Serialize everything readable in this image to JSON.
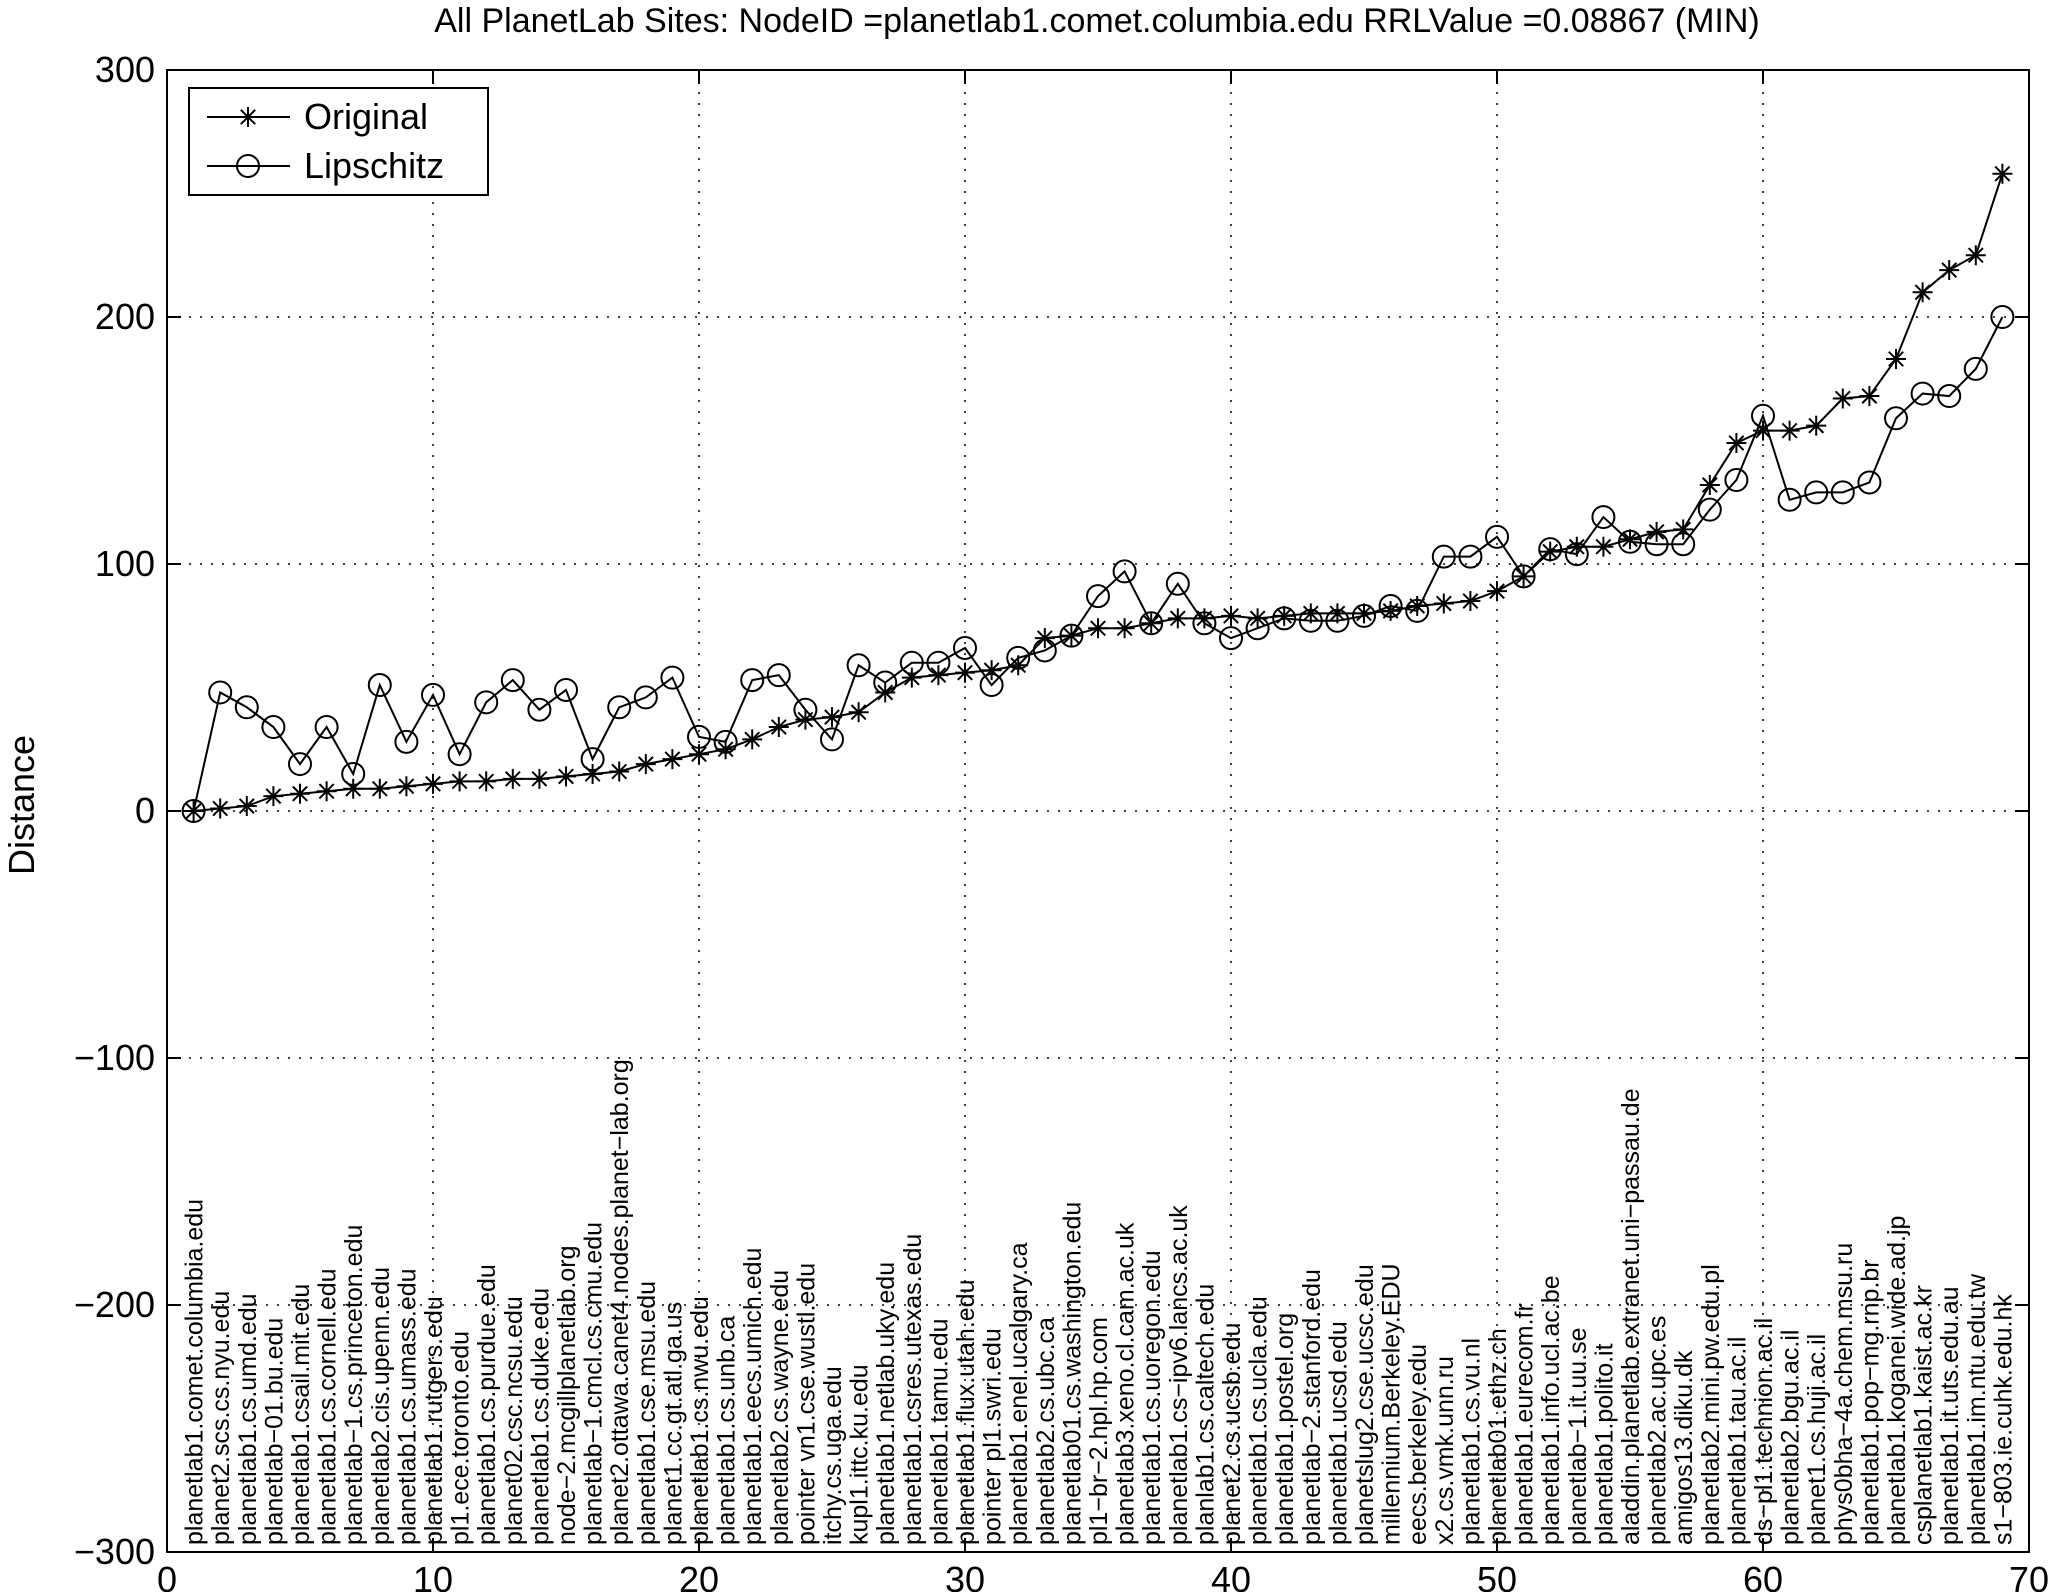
{
  "chart_data": {
    "type": "line",
    "title": "All PlanetLab Sites: NodeID =planetlab1.comet.columbia.edu   RRLValue =0.08867 (MIN)",
    "xlabel": "",
    "ylabel": "Distance",
    "xlim": [
      0,
      70
    ],
    "ylim": [
      -300,
      300
    ],
    "xticks": [
      0,
      10,
      20,
      30,
      40,
      50,
      60,
      70
    ],
    "yticks": [
      -300,
      -200,
      -100,
      0,
      100,
      200,
      300
    ],
    "grid": true,
    "legend_position": "top-left",
    "x": [
      1,
      2,
      3,
      4,
      5,
      6,
      7,
      8,
      9,
      10,
      11,
      12,
      13,
      14,
      15,
      16,
      17,
      18,
      19,
      20,
      21,
      22,
      23,
      24,
      25,
      26,
      27,
      28,
      29,
      30,
      31,
      32,
      33,
      34,
      35,
      36,
      37,
      38,
      39,
      40,
      41,
      42,
      43,
      44,
      45,
      46,
      47,
      48,
      49,
      50,
      51,
      52,
      53,
      54,
      55,
      56,
      57,
      58,
      59,
      60,
      61,
      62,
      63,
      64,
      65,
      66,
      67,
      68,
      69
    ],
    "series": [
      {
        "name": "Original",
        "marker": "star",
        "values": [
          0,
          1,
          2,
          6,
          7,
          8,
          9,
          9,
          10,
          11,
          12,
          12,
          13,
          13,
          14,
          15,
          16,
          19,
          21,
          23,
          25,
          29,
          34,
          37,
          38,
          40,
          48,
          54,
          55,
          56,
          57,
          59,
          70,
          71,
          74,
          74,
          76,
          78,
          78,
          79,
          78,
          79,
          80,
          80,
          80,
          81,
          83,
          84,
          85,
          89,
          95,
          105,
          107,
          107,
          110,
          113,
          114,
          132,
          149,
          154,
          154,
          156,
          167,
          168,
          183,
          210,
          219,
          225,
          258
        ]
      },
      {
        "name": "Lipschitz",
        "marker": "circle",
        "values": [
          0,
          48,
          42,
          34,
          19,
          34,
          15,
          51,
          28,
          47,
          23,
          44,
          53,
          41,
          49,
          21,
          42,
          46,
          54,
          30,
          28,
          53,
          55,
          41,
          29,
          59,
          52,
          60,
          60,
          66,
          51,
          62,
          65,
          71,
          87,
          97,
          76,
          92,
          76,
          70,
          74,
          78,
          77,
          77,
          79,
          83,
          81,
          103,
          103,
          111,
          95,
          106,
          104,
          119,
          109,
          108,
          108,
          122,
          134,
          160,
          126,
          129,
          129,
          133,
          159,
          169,
          168,
          179,
          200
        ]
      }
    ],
    "labels": [
      "planetlab1.comet.columbia.edu",
      "planet2.scs.cs.nyu.edu",
      "planetlab1.cs.umd.edu",
      "planetlab−01.bu.edu",
      "planetlab1.csail.mit.edu",
      "planetlab1.cs.cornell.edu",
      "planetlab−1.cs.princeton.edu",
      "planetlab2.cis.upenn.edu",
      "planetlab1.cs.umass.edu",
      "planetlab1.rutgers.edu",
      "pl1.ece.toronto.edu",
      "planetlab1.cs.purdue.edu",
      "planet02.csc.ncsu.edu",
      "planetlab1.cs.duke.edu",
      "node−2.mcgillplanetlab.org",
      "planetlab−1.cmcl.cs.cmu.edu",
      "planet2.ottawa.canet4.nodes.planet−lab.org",
      "planetlab1.cse.msu.edu",
      "planet1.cc.gt.atl.ga.us",
      "planetlab1.cs.nwu.edu",
      "planetlab1.cs.unb.ca",
      "planetlab1.eecs.umich.edu",
      "planetlab2.cs.wayne.edu",
      "pointer vn1.cse.wustl.edu",
      "itchy.cs.uga.edu",
      "kupl1.ittc.ku.edu",
      "planetlab1.netlab.uky.edu",
      "planetlab1.csres.utexas.edu",
      "planetlab1.tamu.edu",
      "planetlab1.flux.utah.edu",
      "pointer pl1.swri.edu",
      "planetlab1.enel.ucalgary.ca",
      "planetlab2.cs.ubc.ca",
      "planetlab01.cs.washington.edu",
      "pl1−br−2.hpl.hp.com",
      "planetlab3.xeno.cl.cam.ac.uk",
      "planetlab1.cs.uoregon.edu",
      "planetlab1.cs−ipv6.lancs.ac.uk",
      "planlab1.cs.caltech.edu",
      "planet2.cs.ucsb.edu",
      "planetlab1.cs.ucla.edu",
      "planetlab1.postel.org",
      "planetlab−2.stanford.edu",
      "planetlab1.ucsd.edu",
      "planetslug2.cse.ucsc.edu",
      "millennium.Berkeley.EDU",
      "eecs.berkeley.edu",
      "x2.cs.vmk.unn.ru",
      "planetlab1.cs.vu.nl",
      "planetlab01.ethz.ch",
      "planetlab1.eurecom.fr",
      "planetlab1.info.ucl.ac.be",
      "planetlab−1.it.uu.se",
      "planetlab1.polito.it",
      "aladdin.planetlab.extranet.uni−passau.de",
      "planetlab2.ac.upc.es",
      "amigos13.diku.dk",
      "planetlab2.mini.pw.edu.pl",
      "planetlab1.tau.ac.il",
      "ds−pl1.technion.ac.il",
      "planetlab2.bgu.ac.il",
      "planet1.cs.huji.ac.il",
      "phys0bha−4a.chem.msu.ru",
      "planetlab1.pop−mg.rnp.br",
      "planetlab1.koganei.wide.ad.jp",
      "csplanetlab1.kaist.ac.kr",
      "planetlab1.it.uts.edu.au",
      "planetlab1.im.ntu.edu.tw",
      "s1−803.ie.cuhk.edu.hk"
    ]
  }
}
